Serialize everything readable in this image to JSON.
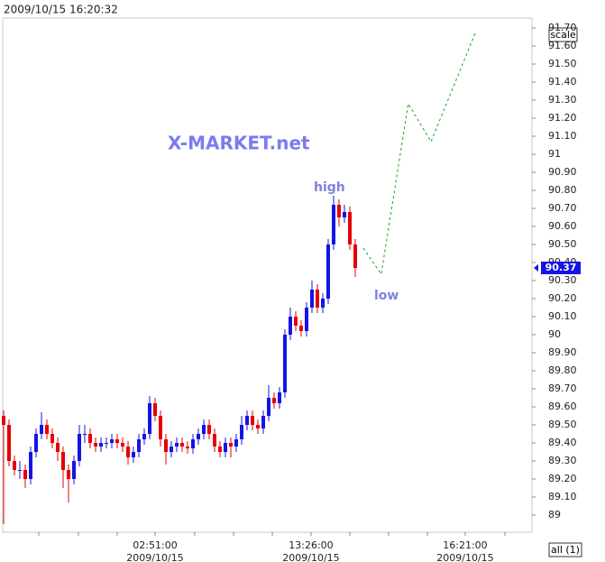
{
  "chart_data": {
    "type": "candlestick",
    "header": "2009/10/15 16:20:32",
    "title": "X-MARKET.net",
    "annotations": [
      {
        "text": "high"
      },
      {
        "text": "low"
      }
    ],
    "scale_button": "scale",
    "all_button": "all (1)",
    "last_price": 90.37,
    "up_color": "#1414e6",
    "down_color": "#e60000",
    "forecast_color": "#22a022",
    "open": [
      89.55,
      89.5,
      89.3,
      89.25,
      89.25,
      89.2,
      89.35,
      89.45,
      89.5,
      89.45,
      89.4,
      89.35,
      89.25,
      89.2,
      89.3,
      89.45,
      89.45,
      89.4,
      89.38,
      89.4,
      89.4,
      89.42,
      89.4,
      89.38,
      89.32,
      89.35,
      89.42,
      89.45,
      89.62,
      89.55,
      89.42,
      89.35,
      89.38,
      89.4,
      89.38,
      89.37,
      89.42,
      89.45,
      89.5,
      89.45,
      89.38,
      89.35,
      89.4,
      89.38,
      89.42,
      89.5,
      89.55,
      89.5,
      89.48,
      89.55,
      89.65,
      89.62,
      89.68,
      90.0,
      90.1,
      90.05,
      90.02,
      90.15,
      90.25,
      90.15,
      90.2,
      90.5,
      90.72,
      90.65,
      90.68,
      90.5
    ],
    "high": [
      89.58,
      89.53,
      89.33,
      89.3,
      89.28,
      89.38,
      89.48,
      89.57,
      89.53,
      89.48,
      89.43,
      89.38,
      89.28,
      89.33,
      89.5,
      89.5,
      89.48,
      89.43,
      89.43,
      89.43,
      89.45,
      89.45,
      89.43,
      89.41,
      89.38,
      89.45,
      89.48,
      89.66,
      89.65,
      89.58,
      89.45,
      89.41,
      89.43,
      89.43,
      89.41,
      89.45,
      89.48,
      89.53,
      89.53,
      89.48,
      89.41,
      89.43,
      89.43,
      89.45,
      89.55,
      89.58,
      89.58,
      89.53,
      89.58,
      89.72,
      89.68,
      89.71,
      90.03,
      90.15,
      90.13,
      90.08,
      90.18,
      90.3,
      90.28,
      90.23,
      90.53,
      90.77,
      90.75,
      90.72,
      90.71,
      90.53
    ],
    "low": [
      88.95,
      89.27,
      89.22,
      89.2,
      89.15,
      89.17,
      89.32,
      89.42,
      89.42,
      89.37,
      89.3,
      89.15,
      89.07,
      89.17,
      89.27,
      89.4,
      89.37,
      89.35,
      89.35,
      89.37,
      89.37,
      89.37,
      89.35,
      89.28,
      89.29,
      89.32,
      89.39,
      89.42,
      89.52,
      89.38,
      89.28,
      89.32,
      89.35,
      89.35,
      89.34,
      89.34,
      89.39,
      89.42,
      89.42,
      89.35,
      89.32,
      89.32,
      89.32,
      89.35,
      89.39,
      89.47,
      89.47,
      89.45,
      89.45,
      89.52,
      89.59,
      89.59,
      89.65,
      89.97,
      90.02,
      89.99,
      89.99,
      90.12,
      90.12,
      90.12,
      90.17,
      90.47,
      90.6,
      90.62,
      90.47,
      90.32
    ],
    "close": [
      89.5,
      89.3,
      89.25,
      89.25,
      89.2,
      89.35,
      89.45,
      89.5,
      89.45,
      89.4,
      89.35,
      89.25,
      89.2,
      89.3,
      89.45,
      89.45,
      89.4,
      89.38,
      89.4,
      89.4,
      89.42,
      89.4,
      89.38,
      89.32,
      89.35,
      89.42,
      89.45,
      89.62,
      89.55,
      89.42,
      89.35,
      89.38,
      89.4,
      89.38,
      89.37,
      89.42,
      89.45,
      89.5,
      89.45,
      89.38,
      89.35,
      89.4,
      89.38,
      89.42,
      89.5,
      89.55,
      89.5,
      89.48,
      89.55,
      89.65,
      89.62,
      89.68,
      90.0,
      90.1,
      90.05,
      90.02,
      90.15,
      90.25,
      90.15,
      90.2,
      90.5,
      90.72,
      90.65,
      90.68,
      90.5,
      90.37
    ],
    "forecast": {
      "x": [
        66.5,
        69.8,
        74.8,
        79,
        87.3
      ],
      "values": [
        90.48,
        90.335,
        91.28,
        91.07,
        91.68
      ]
    },
    "xlim": [
      -0.167,
      97.667
    ],
    "xticks": [
      {
        "value": 6.5,
        "label": null
      },
      {
        "value": 13.83,
        "label": null
      },
      {
        "value": 21,
        "label": null
      },
      {
        "value": 28,
        "label": "02:51:00",
        "date": "2009/10/15"
      },
      {
        "value": 35.33,
        "label": null
      },
      {
        "value": 42.5,
        "label": null
      },
      {
        "value": 49.67,
        "label": null
      },
      {
        "value": 56.83,
        "label": "13:26:00",
        "date": "2009/10/15"
      },
      {
        "value": 64,
        "label": null
      },
      {
        "value": 71.17,
        "label": null
      },
      {
        "value": 78.33,
        "label": null
      },
      {
        "value": 85.33,
        "label": "16:21:00",
        "date": "2009/10/15"
      },
      {
        "value": 92.67,
        "label": null
      }
    ],
    "ylim": [
      88.905,
      91.755
    ],
    "yticks": [
      89,
      {
        "value": 89.1,
        "label": "89.10"
      },
      {
        "value": 89.2,
        "label": "89.20"
      },
      {
        "value": 89.3,
        "label": "89.30"
      },
      {
        "value": 89.4,
        "label": "89.40"
      },
      {
        "value": 89.5,
        "label": "89.50"
      },
      {
        "value": 89.6,
        "label": "89.60"
      },
      {
        "value": 89.7,
        "label": "89.70"
      },
      {
        "value": 89.8,
        "label": "89.80"
      },
      {
        "value": 89.9,
        "label": "89.90"
      },
      90,
      {
        "value": 90.1,
        "label": "90.10"
      },
      {
        "value": 90.2,
        "label": "90.20"
      },
      {
        "value": 90.3,
        "label": "90.30"
      },
      {
        "value": 90.4,
        "label": "90.40"
      },
      {
        "value": 90.5,
        "label": "90.50"
      },
      {
        "value": 90.6,
        "label": "90.60"
      },
      {
        "value": 90.7,
        "label": "90.70"
      },
      {
        "value": 90.8,
        "label": "90.80"
      },
      {
        "value": 90.9,
        "label": "90.90"
      },
      91,
      {
        "value": 91.1,
        "label": "91.10"
      },
      {
        "value": 91.2,
        "label": "91.20"
      },
      {
        "value": 91.3,
        "label": "91.30"
      },
      {
        "value": 91.4,
        "label": "91.40"
      },
      {
        "value": 91.5,
        "label": "91.50"
      },
      {
        "value": 91.6,
        "label": "91.60"
      },
      {
        "value": 91.7,
        "label": "91.70"
      }
    ]
  }
}
